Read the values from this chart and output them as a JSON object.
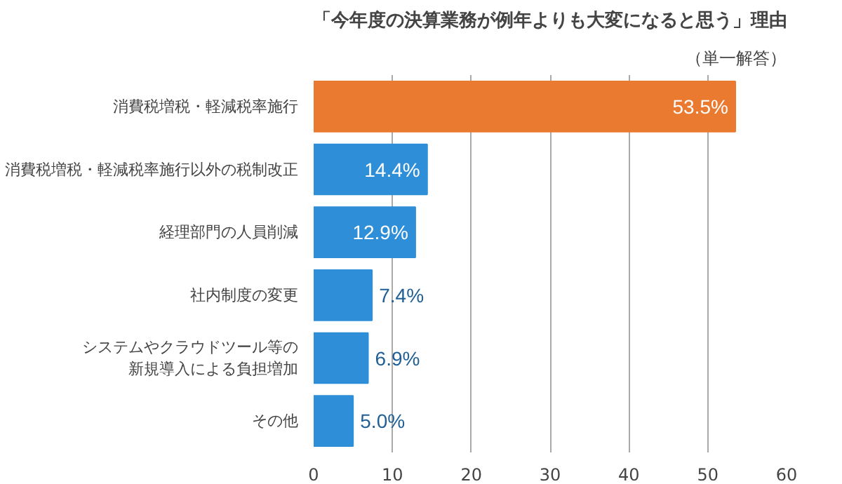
{
  "chart_data": {
    "type": "bar",
    "orientation": "horizontal",
    "title": "「今年度の決算業務が例年よりも大変になると思う」理由",
    "subtitle": "（単一解答）",
    "categories": [
      "消費税増税・軽減税率施行",
      "消費税増税・軽減税率施行以外の税制改正",
      "経理部門の人員削減",
      "社内制度の変更",
      "システムやクラウドツール等の新規導入による負担増加",
      "その他"
    ],
    "values": [
      53.5,
      14.4,
      12.9,
      7.4,
      6.9,
      5.0
    ],
    "colors": [
      "#ea7a30",
      "#2e8fd8",
      "#2e8fd8",
      "#2e8fd8",
      "#2e8fd8",
      "#2e8fd8"
    ],
    "value_labels": [
      "53.5%",
      "14.4%",
      "12.9%",
      "7.4%",
      "6.9%",
      "5.0%"
    ],
    "xlim": [
      0,
      60
    ],
    "xticks": [
      0,
      10,
      20,
      30,
      40,
      50,
      60
    ],
    "grid": "x"
  }
}
